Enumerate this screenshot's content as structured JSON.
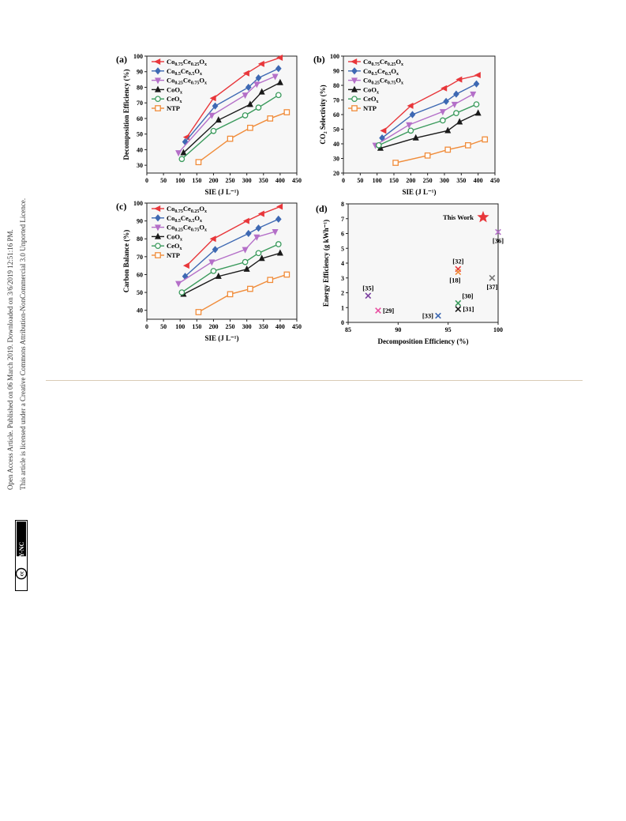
{
  "side_notes": {
    "line1": "Open Access Article. Published on 06 March 2019. Downloaded on 3/6/2019 12:51:16 PM.",
    "line2": "This article is licensed under a Creative Commons Attribution-NonCommercial 3.0 Unported Licence.",
    "badge_cc": "cc",
    "badge_text": "BY-NC"
  },
  "colors": {
    "red": "#e8373b",
    "blue": "#3e69b3",
    "purple": "#b46fc8",
    "black": "#1a1a1a",
    "green": "#3a9a5c",
    "orange": "#f08c3a",
    "star": "#e8373b",
    "grid_bg": "#f7f7f7"
  },
  "chart_data": [
    {
      "panel": "(a)",
      "type": "line",
      "xlabel": "SIE (J L⁻¹)",
      "ylabel": "Decomposition Efficiency (%)",
      "xlim": [
        0,
        450
      ],
      "ylim": [
        25,
        100
      ],
      "xticks": [
        0,
        50,
        100,
        150,
        200,
        250,
        300,
        350,
        400,
        450
      ],
      "yticks": [
        30,
        40,
        50,
        60,
        70,
        80,
        90,
        100
      ],
      "legend": "top-left",
      "series": [
        {
          "name": "Co0.75Ce0.25Ox",
          "name_main": "Co",
          "sub1": "0.75",
          "mid": "Ce",
          "sub2": "0.25",
          "end": "O",
          "sub3": "x",
          "color": "red",
          "marker": "triangle-left",
          "x": [
            120,
            200,
            300,
            345,
            400
          ],
          "y": [
            48,
            73,
            89,
            95,
            99
          ]
        },
        {
          "name": "Co0.5Ce0.5Ox",
          "name_main": "Co",
          "sub1": "0.5",
          "mid": "Ce",
          "sub2": "0.5",
          "end": "O",
          "sub3": "x",
          "color": "blue",
          "marker": "diamond",
          "x": [
            115,
            205,
            305,
            335,
            395
          ],
          "y": [
            45,
            68,
            80,
            86,
            92
          ]
        },
        {
          "name": "Co0.25Ce0.75Ox",
          "name_main": "Co",
          "sub1": "0.25",
          "mid": "Ce",
          "sub2": "0.75",
          "end": "O",
          "sub3": "x",
          "color": "purple",
          "marker": "triangle-down",
          "x": [
            95,
            195,
            295,
            330,
            385
          ],
          "y": [
            38,
            62,
            75,
            82,
            87
          ]
        },
        {
          "name": "CoOx",
          "name_main": "CoO",
          "sub1": "x",
          "mid": "",
          "sub2": "",
          "end": "",
          "sub3": "",
          "color": "black",
          "marker": "triangle-up",
          "x": [
            110,
            215,
            310,
            345,
            400
          ],
          "y": [
            38,
            59,
            69,
            77,
            83
          ]
        },
        {
          "name": "CeOx",
          "name_main": "CeO",
          "sub1": "x",
          "mid": "",
          "sub2": "",
          "end": "",
          "sub3": "",
          "color": "green",
          "marker": "circle",
          "x": [
            105,
            200,
            295,
            335,
            395
          ],
          "y": [
            34,
            52,
            62,
            67,
            75
          ]
        },
        {
          "name": "NTP",
          "name_main": "NTP",
          "sub1": "",
          "mid": "",
          "sub2": "",
          "end": "",
          "sub3": "",
          "color": "orange",
          "marker": "square",
          "x": [
            155,
            250,
            310,
            370,
            420
          ],
          "y": [
            32,
            47,
            54,
            60,
            64
          ]
        }
      ]
    },
    {
      "panel": "(b)",
      "type": "line",
      "xlabel": "SIE (J L⁻¹)",
      "ylabel": "CO₂ Selectivity (%)",
      "xlim": [
        0,
        450
      ],
      "ylim": [
        20,
        100
      ],
      "xticks": [
        0,
        50,
        100,
        150,
        200,
        250,
        300,
        350,
        400,
        450
      ],
      "yticks": [
        20,
        30,
        40,
        50,
        60,
        70,
        80,
        90,
        100
      ],
      "legend": "top-left",
      "series": [
        {
          "name": "Co0.75Ce0.25Ox",
          "name_main": "Co",
          "sub1": "0.75",
          "mid": "Ce",
          "sub2": "0.25",
          "end": "O",
          "sub3": "x",
          "color": "red",
          "marker": "triangle-left",
          "x": [
            120,
            200,
            300,
            345,
            400
          ],
          "y": [
            49,
            66,
            78,
            84,
            87
          ]
        },
        {
          "name": "Co0.5Ce0.5Ox",
          "name_main": "Co",
          "sub1": "0.5",
          "mid": "Ce",
          "sub2": "0.5",
          "end": "O",
          "sub3": "x",
          "color": "blue",
          "marker": "diamond",
          "x": [
            115,
            205,
            305,
            335,
            395
          ],
          "y": [
            44,
            60,
            69,
            74,
            81
          ]
        },
        {
          "name": "Co0.25Ce0.75Ox",
          "name_main": "Co",
          "sub1": "0.25",
          "mid": "Ce",
          "sub2": "0.75",
          "end": "O",
          "sub3": "x",
          "color": "purple",
          "marker": "triangle-down",
          "x": [
            95,
            195,
            295,
            330,
            385
          ],
          "y": [
            39,
            53,
            62,
            67,
            74
          ]
        },
        {
          "name": "CoOx",
          "name_main": "CoO",
          "sub1": "x",
          "mid": "",
          "sub2": "",
          "end": "",
          "sub3": "",
          "color": "black",
          "marker": "triangle-up",
          "x": [
            110,
            215,
            310,
            345,
            400
          ],
          "y": [
            37,
            44,
            49,
            55,
            61
          ]
        },
        {
          "name": "CeOx",
          "name_main": "CeO",
          "sub1": "x",
          "mid": "",
          "sub2": "",
          "end": "",
          "sub3": "",
          "color": "green",
          "marker": "circle",
          "x": [
            105,
            200,
            295,
            335,
            395
          ],
          "y": [
            39,
            49,
            56,
            61,
            67
          ]
        },
        {
          "name": "NTP",
          "name_main": "NTP",
          "sub1": "",
          "mid": "",
          "sub2": "",
          "end": "",
          "sub3": "",
          "color": "orange",
          "marker": "square",
          "x": [
            155,
            250,
            310,
            370,
            420
          ],
          "y": [
            27,
            32,
            36,
            39,
            43
          ]
        }
      ]
    },
    {
      "panel": "(c)",
      "type": "line",
      "xlabel": "SIE (J L⁻¹)",
      "ylabel": "Carbon Balance (%)",
      "xlim": [
        0,
        450
      ],
      "ylim": [
        35,
        100
      ],
      "xticks": [
        0,
        50,
        100,
        150,
        200,
        250,
        300,
        350,
        400,
        450
      ],
      "yticks": [
        40,
        50,
        60,
        70,
        80,
        90,
        100
      ],
      "legend": "top-left",
      "series": [
        {
          "name": "Co0.75Ce0.25Ox",
          "name_main": "Co",
          "sub1": "0.75",
          "mid": "Ce",
          "sub2": "0.25",
          "end": "O",
          "sub3": "x",
          "color": "red",
          "marker": "triangle-left",
          "x": [
            120,
            200,
            300,
            345,
            400
          ],
          "y": [
            65,
            80,
            90,
            94,
            98
          ]
        },
        {
          "name": "Co0.5Ce0.5Ox",
          "name_main": "Co",
          "sub1": "0.5",
          "mid": "Ce",
          "sub2": "0.5",
          "end": "O",
          "sub3": "x",
          "color": "blue",
          "marker": "diamond",
          "x": [
            115,
            205,
            305,
            335,
            395
          ],
          "y": [
            59,
            74,
            83,
            86,
            91
          ]
        },
        {
          "name": "Co0.25Ce0.75Ox",
          "name_main": "Co",
          "sub1": "0.25",
          "mid": "Ce",
          "sub2": "0.75",
          "end": "O",
          "sub3": "x",
          "color": "purple",
          "marker": "triangle-down",
          "x": [
            95,
            195,
            295,
            330,
            385
          ],
          "y": [
            55,
            67,
            74,
            81,
            84
          ]
        },
        {
          "name": "CoOx",
          "name_main": "CoO",
          "sub1": "x",
          "mid": "",
          "sub2": "",
          "end": "",
          "sub3": "",
          "color": "black",
          "marker": "triangle-up",
          "x": [
            110,
            215,
            300,
            345,
            400
          ],
          "y": [
            49,
            59,
            63,
            69,
            72
          ]
        },
        {
          "name": "CeOx",
          "name_main": "CeO",
          "sub1": "x",
          "mid": "",
          "sub2": "",
          "end": "",
          "sub3": "",
          "color": "green",
          "marker": "circle",
          "x": [
            105,
            200,
            295,
            335,
            395
          ],
          "y": [
            50,
            62,
            67,
            72,
            77
          ]
        },
        {
          "name": "NTP",
          "name_main": "NTP",
          "sub1": "",
          "mid": "",
          "sub2": "",
          "end": "",
          "sub3": "",
          "color": "orange",
          "marker": "square",
          "x": [
            155,
            250,
            310,
            370,
            420
          ],
          "y": [
            39,
            49,
            52,
            57,
            60
          ]
        }
      ]
    },
    {
      "panel": "(d)",
      "type": "scatter",
      "xlabel": "Decomposition Efficiency (%)",
      "ylabel": "Energy Efficiency (g kWh⁻¹)",
      "xlim": [
        85,
        100
      ],
      "ylim": [
        0,
        8
      ],
      "xticks": [
        85,
        90,
        95,
        100
      ],
      "yticks": [
        0,
        1,
        2,
        3,
        4,
        5,
        6,
        7,
        8
      ],
      "points": [
        {
          "label": "This Work",
          "x": 98.5,
          "y": 7.1,
          "marker": "star",
          "color": "#e8373b",
          "label_pos": "left"
        },
        {
          "label": "[36]",
          "x": 100,
          "y": 6.1,
          "marker": "x",
          "color": "#b46fc8",
          "label_pos": "below"
        },
        {
          "label": "[32]",
          "x": 96,
          "y": 3.6,
          "marker": "x",
          "color": "#e8373b",
          "label_pos": "above"
        },
        {
          "label": "[18]",
          "x": 96,
          "y": 3.4,
          "marker": "x",
          "color": "#f08c3a",
          "label_pos": "below-left"
        },
        {
          "label": "[37]",
          "x": 99.4,
          "y": 3.0,
          "marker": "x",
          "color": "#777777",
          "label_pos": "below"
        },
        {
          "label": "[35]",
          "x": 87,
          "y": 1.8,
          "marker": "x",
          "color": "#7b3fa0",
          "label_pos": "above"
        },
        {
          "label": "[30]",
          "x": 96,
          "y": 1.3,
          "marker": "x",
          "color": "#3a9a5c",
          "label_pos": "above-right"
        },
        {
          "label": "[29]",
          "x": 88,
          "y": 0.8,
          "marker": "x",
          "color": "#e84fa0",
          "label_pos": "right"
        },
        {
          "label": "[31]",
          "x": 96,
          "y": 0.9,
          "marker": "x",
          "color": "#1a1a1a",
          "label_pos": "right"
        },
        {
          "label": "[33]",
          "x": 94,
          "y": 0.45,
          "marker": "x",
          "color": "#3e69b3",
          "label_pos": "left"
        }
      ]
    }
  ]
}
